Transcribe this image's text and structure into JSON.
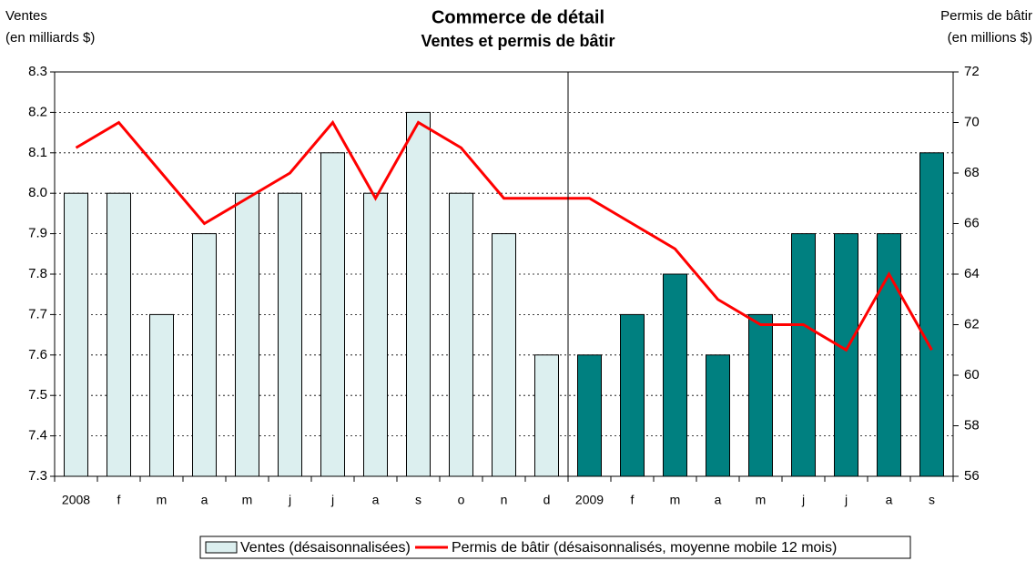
{
  "chart_data": {
    "type": "bar",
    "title": "Commerce de détail",
    "subtitle": "Ventes et permis de bâtir",
    "ylabel": [
      "Ventes",
      "(en milliards $)"
    ],
    "y2label": [
      "Permis de bâtir",
      "(en millions $)"
    ],
    "categories": [
      "2008",
      "f",
      "m",
      "a",
      "m",
      "j",
      "j",
      "a",
      "s",
      "o",
      "n",
      "d",
      "2009",
      "f",
      "m",
      "a",
      "m",
      "j",
      "j",
      "a",
      "s"
    ],
    "series": [
      {
        "name": "Ventes (désaisonnalisées)",
        "type": "bar",
        "color": "#dcefef",
        "colors": [
          "#dcefef",
          "#dcefef",
          "#dcefef",
          "#dcefef",
          "#dcefef",
          "#dcefef",
          "#dcefef",
          "#dcefef",
          "#dcefef",
          "#dcefef",
          "#dcefef",
          "#dcefef",
          "#008080",
          "#008080",
          "#008080",
          "#008080",
          "#008080",
          "#008080",
          "#008080",
          "#008080",
          "#008080"
        ],
        "values": [
          8.0,
          8.0,
          7.7,
          7.9,
          8.0,
          8.0,
          8.1,
          8.0,
          8.2,
          8.0,
          7.9,
          7.6,
          7.6,
          7.7,
          7.8,
          7.6,
          7.7,
          7.9,
          7.9,
          7.9,
          8.1
        ]
      },
      {
        "name": "Permis de bâtir (désaisonnalisés, moyenne mobile 12 mois)",
        "type": "line",
        "axis": "y2",
        "color": "#ff0000",
        "values": [
          69,
          70,
          68,
          66,
          67,
          68,
          70,
          67,
          70,
          69,
          67,
          67,
          67,
          66,
          65,
          63,
          62,
          62,
          61,
          64,
          61
        ]
      }
    ],
    "ylim": [
      7.3,
      8.3
    ],
    "yticks": [
      7.3,
      7.4,
      7.5,
      7.6,
      7.7,
      7.8,
      7.9,
      {
        "value": 8.0,
        "label": "8.0"
      },
      8.1,
      8.2,
      8.3
    ],
    "y2lim": [
      56,
      72
    ],
    "y2ticks": [
      56,
      58,
      60,
      62,
      64,
      66,
      68,
      70,
      72
    ],
    "grid": true
  }
}
